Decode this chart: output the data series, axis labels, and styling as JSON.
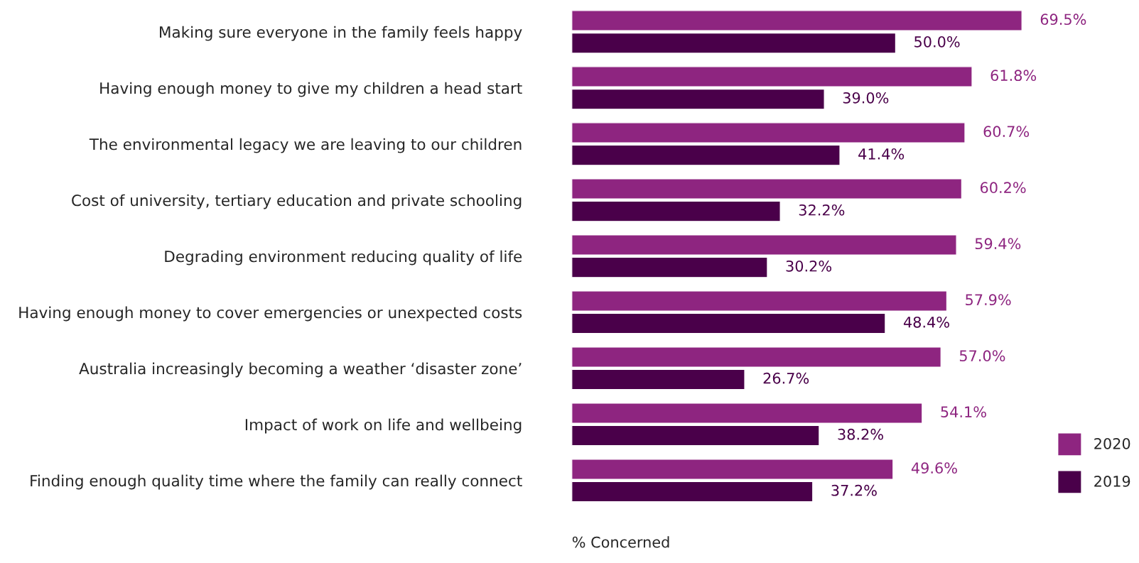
{
  "chart_data": {
    "type": "bar",
    "orientation": "horizontal",
    "categories": [
      "Making sure everyone in the family feels happy",
      "Having enough money to give my children a head start",
      "The environmental legacy we are leaving to our children",
      "Cost of university, tertiary education and private schooling",
      "Degrading environment reducing quality of life",
      "Having enough money to cover emergencies or unexpected costs",
      "Australia increasingly becoming a weather ‘disaster zone’",
      "Impact of work on life and wellbeing",
      "Finding enough quality time where the family can really connect"
    ],
    "series": [
      {
        "name": "2020",
        "color": "#8e2580",
        "values": [
          69.5,
          61.8,
          60.7,
          60.2,
          59.4,
          57.9,
          57.0,
          54.1,
          49.6
        ],
        "value_labels": [
          "69.5%",
          "61.8%",
          "60.7%",
          "60.2%",
          "59.4%",
          "57.9%",
          "57.0%",
          "54.1%",
          "49.6%"
        ]
      },
      {
        "name": "2019",
        "color": "#4a004a",
        "values": [
          50.0,
          39.0,
          41.4,
          32.2,
          30.2,
          48.4,
          26.7,
          38.2,
          37.2
        ],
        "value_labels": [
          "50.0%",
          "39.0%",
          "41.4%",
          "32.2%",
          "30.2%",
          "48.4%",
          "26.7%",
          "38.2%",
          "37.2%"
        ]
      }
    ],
    "xlabel": "% Concerned",
    "legend": "bottom right",
    "grid": false,
    "tick_labels": "y"
  }
}
